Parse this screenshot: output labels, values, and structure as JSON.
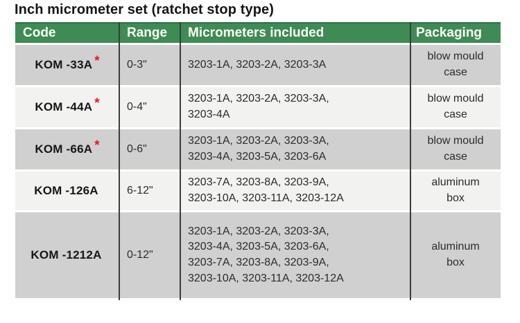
{
  "title": "Inch micrometer set (ratchet stop type)",
  "table": {
    "headers": {
      "code": "Code",
      "range": "Range",
      "micrometers": "Micrometers included",
      "packaging": "Packaging"
    },
    "rows": [
      {
        "code": "KOM -33A",
        "star": "*",
        "range": "0-3\"",
        "micrometers": "3203-1A, 3203-2A, 3203-3A",
        "packaging": "blow mould\ncase"
      },
      {
        "code": "KOM -44A",
        "star": "*",
        "range": "0-4\"",
        "micrometers": "3203-1A, 3203-2A, 3203-3A,\n3203-4A",
        "packaging": "blow mould\ncase"
      },
      {
        "code": "KOM -66A",
        "star": "*",
        "range": "0-6\"",
        "micrometers": "3203-1A, 3203-2A, 3203-3A,\n3203-4A, 3203-5A, 3203-6A",
        "packaging": "blow mould\ncase"
      },
      {
        "code": "KOM -126A",
        "star": "",
        "range": "6-12\"",
        "micrometers": "3203-7A, 3203-8A, 3203-9A,\n3203-10A, 3203-11A, 3203-12A",
        "packaging": "aluminum\nbox"
      },
      {
        "code": "KOM -1212A",
        "star": "",
        "range": "0-12\"",
        "micrometers": "3203-1A, 3203-2A, 3203-3A,\n3203-4A, 3203-5A, 3203-6A,\n3203-7A, 3203-8A, 3203-9A,\n3203-10A, 3203-11A, 3203-12A",
        "packaging": "aluminum\nbox"
      }
    ],
    "colors": {
      "header_bg": "#3e8b55",
      "header_text": "#fdfdf2",
      "row_odd_bg": "#d0d0d0",
      "row_even_bg": "#f2f2f0",
      "asterisk_red": "#e8171f",
      "column_border": "#3c3c3c"
    }
  }
}
